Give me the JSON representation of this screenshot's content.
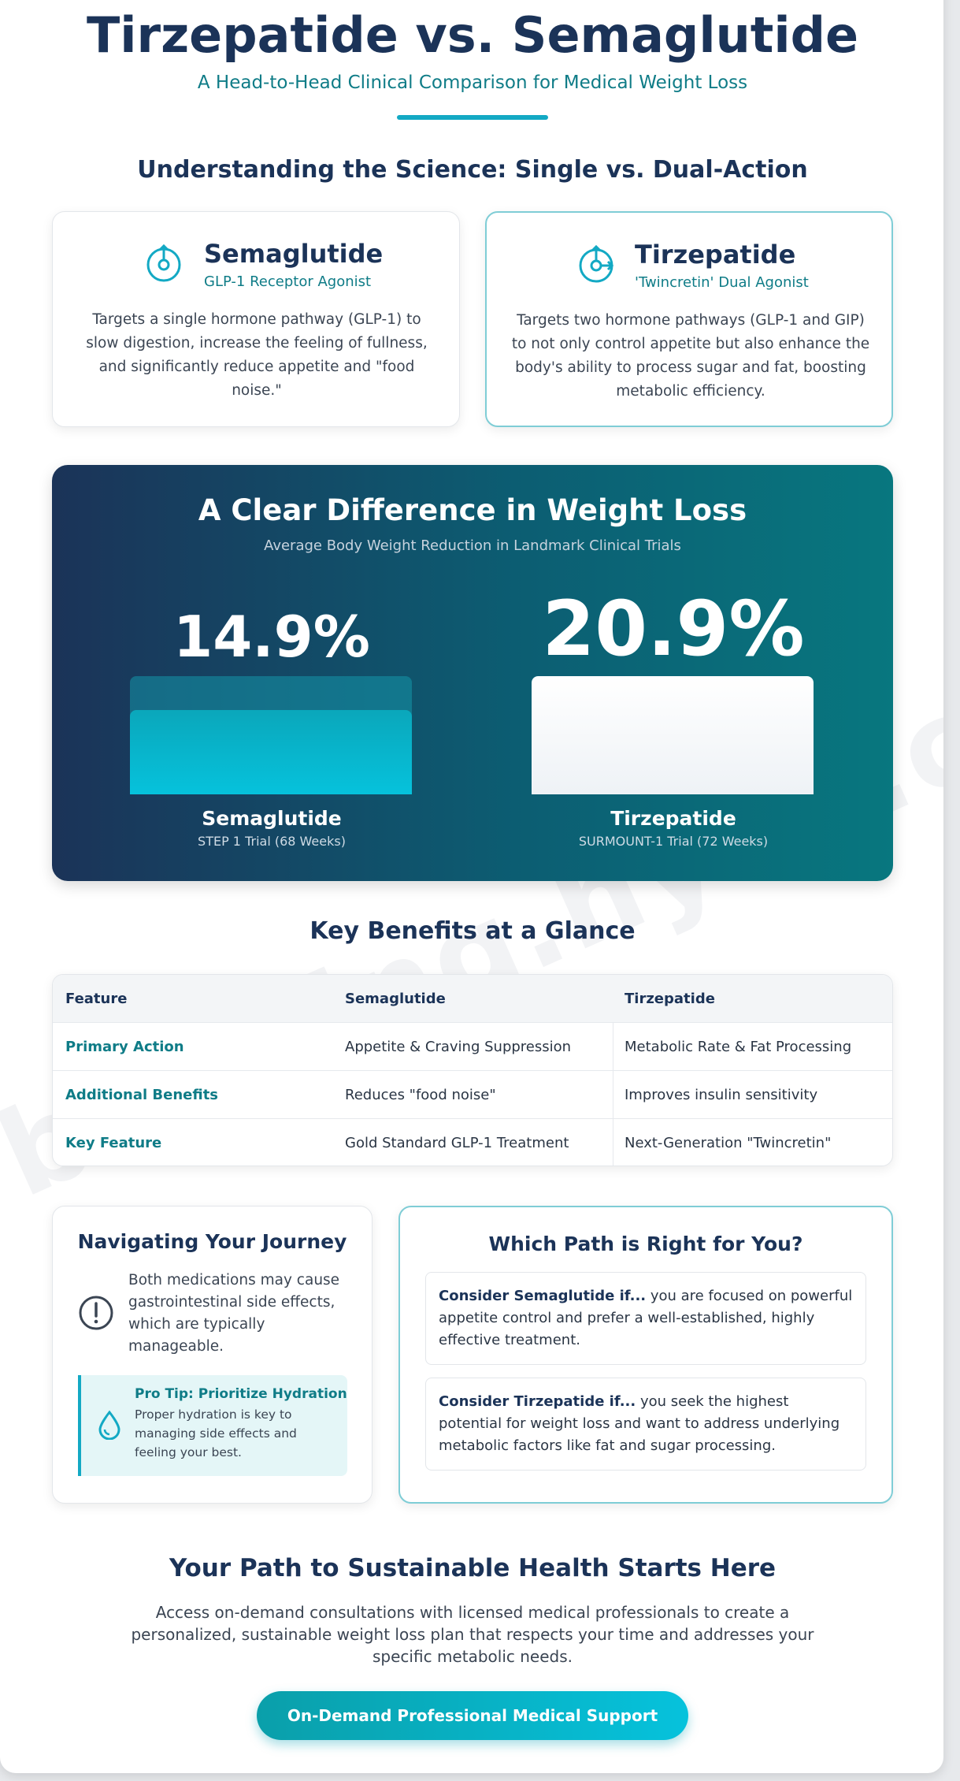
{
  "hero": {
    "title": "Tirzepatide vs. Semaglutide",
    "subtitle": "A Head-to-Head Clinical Comparison for Medical Weight Loss"
  },
  "science": {
    "heading": "Understanding the Science: Single vs. Dual-Action",
    "cards": [
      {
        "name": "Semaglutide",
        "type": "GLP-1 Receptor Agonist",
        "icon": "single-target-icon",
        "description": "Targets a single hormone pathway (GLP-1) to slow digestion, increase the feeling of fullness, and significantly reduce appetite and \"food noise.\""
      },
      {
        "name": "Tirzepatide",
        "type": "'Twincretin' Dual Agonist",
        "icon": "dual-target-icon",
        "description": "Targets two hormone pathways (GLP-1 and GIP) to not only control appetite but also enhance the body's ability to process sugar and fat, boosting metabolic efficiency."
      }
    ]
  },
  "results": {
    "title": "A Clear Difference in Weight Loss",
    "subtitle": "Average Body Weight Reduction in Landmark Clinical Trials",
    "items": [
      {
        "value": "14.9%",
        "percent": 14.9,
        "name": "Semaglutide",
        "trial": "STEP 1 Trial (68 Weeks)",
        "color": "#06c2dc"
      },
      {
        "value": "20.9%",
        "percent": 20.9,
        "name": "Tirzepatide",
        "trial": "SURMOUNT-1 Trial (72 Weeks)",
        "color": "#ffffff"
      }
    ]
  },
  "benefits": {
    "heading": "Key Benefits at a Glance",
    "columns": [
      "Feature",
      "Semaglutide",
      "Tirzepatide"
    ],
    "rows": [
      [
        "Primary Action",
        "Appetite & Craving Suppression",
        "Metabolic Rate & Fat Processing"
      ],
      [
        "Additional Benefits",
        "Reduces \"food noise\"",
        "Improves insulin sensitivity"
      ],
      [
        "Key Feature",
        "Gold Standard GLP-1 Treatment",
        "Next-Generation \"Twincretin\""
      ]
    ]
  },
  "journey": {
    "title": "Navigating Your Journey",
    "text": "Both medications may cause gastrointestinal side effects, which are typically manageable.",
    "tip_title": "Pro Tip: Prioritize Hydration",
    "tip_text": "Proper hydration is key to managing side effects and feeling your best."
  },
  "path": {
    "title": "Which Path is Right for You?",
    "choices": [
      {
        "lead": "Consider Semaglutide if...",
        "text": " you are focused on powerful appetite control and prefer a well-established, highly effective treatment."
      },
      {
        "lead": "Consider Tirzepatide if...",
        "text": " you seek the highest potential for weight loss and want to address underlying metabolic factors like fat and sugar processing."
      }
    ]
  },
  "cta": {
    "title": "Your Path to Sustainable Health Starts Here",
    "text": "Access on-demand consultations with licensed medical professionals to create a personalized, sustainable weight loss plan that respects your time and addresses your specific metabolic needs.",
    "button_label": "On-Demand Professional Medical Support"
  },
  "watermark": "booking.hyve.com",
  "colors": {
    "navy": "#1b3358",
    "teal": "#0f7c87",
    "accent": "#13a9c4"
  }
}
